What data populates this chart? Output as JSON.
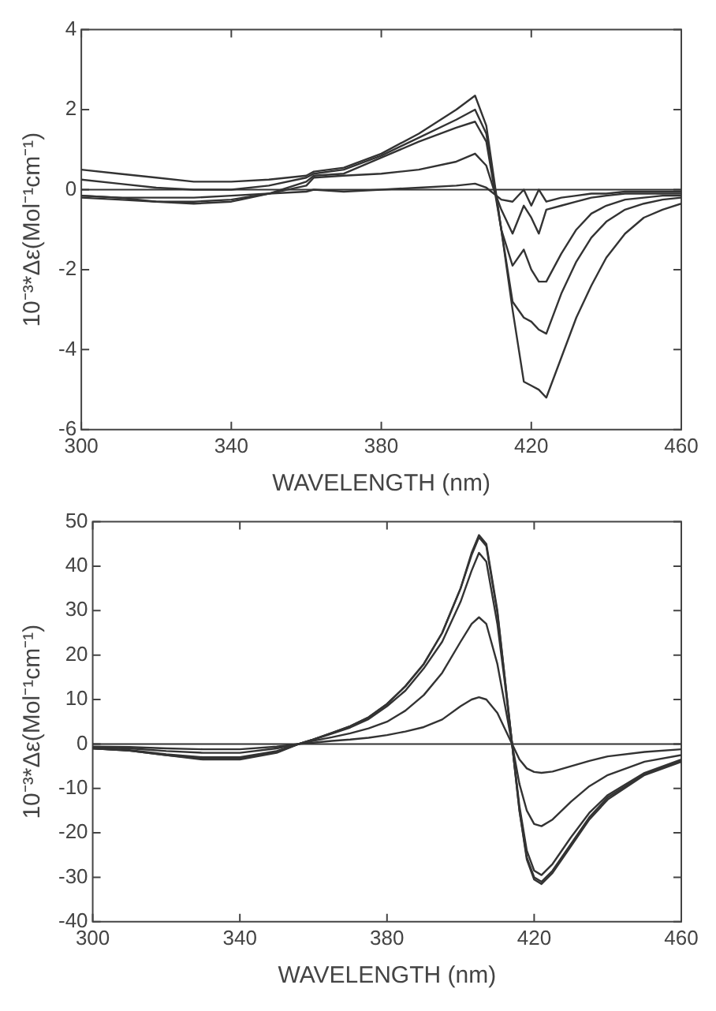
{
  "chart_data": [
    {
      "type": "line",
      "xlabel": "WAVELENGTH (nm)",
      "ylabel": "10⁻³*Δε(Mol⁻¹cm⁻¹)",
      "x": [
        300,
        310,
        320,
        330,
        340,
        350,
        360,
        362,
        370,
        380,
        390,
        400,
        405,
        408,
        410,
        412,
        415,
        418,
        420,
        422,
        424,
        428,
        432,
        436,
        440,
        445,
        450,
        455,
        460
      ],
      "xlim": [
        300,
        460
      ],
      "xticks": [
        300,
        340,
        380,
        420,
        460
      ],
      "ylim": [
        -6,
        4
      ],
      "yticks": [
        -6,
        -4,
        -2,
        0,
        2,
        4
      ],
      "grid": false,
      "legend": false,
      "marker": "none",
      "line_style": "solid",
      "ref_lines": [
        {
          "axis": "y",
          "value": 0,
          "color": "#333333"
        }
      ],
      "series": [
        {
          "color": "#333333",
          "values": [
            0.5,
            0.4,
            0.3,
            0.2,
            0.2,
            0.25,
            0.35,
            0.45,
            0.55,
            0.9,
            1.4,
            2.0,
            2.35,
            1.6,
            0.3,
            -1.0,
            -3.0,
            -4.8,
            -4.9,
            -5.0,
            -5.2,
            -4.2,
            -3.2,
            -2.4,
            -1.7,
            -1.1,
            -0.7,
            -0.5,
            -0.35
          ]
        },
        {
          "color": "#333333",
          "values": [
            0.25,
            0.15,
            0.05,
            0.0,
            0.0,
            0.1,
            0.3,
            0.4,
            0.5,
            0.85,
            1.3,
            1.75,
            2.0,
            1.4,
            0.2,
            -1.0,
            -2.8,
            -3.2,
            -3.3,
            -3.5,
            -3.6,
            -2.6,
            -1.8,
            -1.2,
            -0.8,
            -0.5,
            -0.35,
            -0.25,
            -0.2
          ]
        },
        {
          "color": "#333333",
          "values": [
            -0.15,
            -0.2,
            -0.3,
            -0.35,
            -0.3,
            -0.1,
            0.2,
            0.35,
            0.4,
            0.8,
            1.2,
            1.55,
            1.7,
            1.2,
            0.1,
            -1.0,
            -1.9,
            -1.5,
            -2.0,
            -2.3,
            -2.3,
            -1.6,
            -1.0,
            -0.6,
            -0.4,
            -0.25,
            -0.2,
            -0.15,
            -0.15
          ]
        },
        {
          "color": "#333333",
          "values": [
            -0.2,
            -0.25,
            -0.3,
            -0.3,
            -0.25,
            -0.1,
            0.1,
            0.3,
            0.35,
            0.4,
            0.5,
            0.7,
            0.9,
            0.6,
            0.0,
            -0.5,
            -1.1,
            -0.4,
            -0.7,
            -1.1,
            -0.5,
            -0.4,
            -0.3,
            -0.2,
            -0.15,
            -0.1,
            -0.1,
            -0.1,
            -0.1
          ]
        },
        {
          "color": "#333333",
          "values": [
            -0.15,
            -0.2,
            -0.2,
            -0.2,
            -0.15,
            -0.1,
            -0.05,
            0.0,
            -0.05,
            0.0,
            0.05,
            0.1,
            0.15,
            0.05,
            -0.1,
            -0.25,
            -0.3,
            0.0,
            -0.4,
            0.0,
            -0.3,
            -0.2,
            -0.15,
            -0.1,
            -0.1,
            -0.05,
            -0.05,
            -0.05,
            -0.05
          ]
        }
      ]
    },
    {
      "type": "line",
      "xlabel": "WAVELENGTH (nm)",
      "ylabel": "10⁻³*Δε(Mol⁻¹cm⁻¹)",
      "x": [
        300,
        310,
        320,
        330,
        340,
        350,
        356,
        360,
        365,
        370,
        375,
        380,
        385,
        390,
        395,
        400,
        403,
        405,
        407,
        410,
        412,
        414,
        416,
        418,
        420,
        422,
        425,
        430,
        435,
        440,
        450,
        460
      ],
      "xlim": [
        300,
        460
      ],
      "xticks": [
        300,
        340,
        380,
        420,
        460
      ],
      "ylim": [
        -40,
        50
      ],
      "yticks": [
        -40,
        -30,
        -20,
        -10,
        0,
        10,
        20,
        30,
        40,
        50
      ],
      "grid": false,
      "legend": false,
      "marker": "none",
      "line_style": "solid",
      "ref_lines": [
        {
          "axis": "y",
          "value": 0,
          "color": "#333333"
        }
      ],
      "series": [
        {
          "color": "#333333",
          "values": [
            -1,
            -1.5,
            -2.5,
            -3.5,
            -3.5,
            -2,
            0,
            1,
            2.5,
            4,
            6,
            9,
            13,
            18,
            25,
            35,
            43,
            47,
            45,
            30,
            15,
            0,
            -15,
            -26,
            -30.5,
            -31.5,
            -29,
            -23,
            -17,
            -12.5,
            -7,
            -4
          ]
        },
        {
          "color": "#333333",
          "values": [
            -1,
            -1.5,
            -2.5,
            -3.3,
            -3.3,
            -1.8,
            0,
            1,
            2.5,
            4,
            6,
            9,
            13,
            18,
            25,
            35,
            42.5,
            46.5,
            44.5,
            29.5,
            15,
            0,
            -15,
            -25.5,
            -30,
            -31,
            -28.5,
            -22.5,
            -16.5,
            -12,
            -6.8,
            -3.8
          ]
        },
        {
          "color": "#333333",
          "values": [
            -1,
            -1.4,
            -2.3,
            -3,
            -3,
            -1.6,
            0,
            1,
            2.3,
            3.7,
            5.6,
            8.5,
            12,
            17,
            23,
            32,
            39,
            43,
            41,
            27,
            14,
            0,
            -14,
            -24,
            -28.5,
            -29.5,
            -27,
            -21,
            -15.5,
            -11.5,
            -6.5,
            -3.5
          ]
        },
        {
          "color": "#333333",
          "values": [
            -0.8,
            -1,
            -1.6,
            -2,
            -2,
            -1,
            0,
            0.7,
            1.5,
            2.4,
            3.5,
            5,
            7.5,
            11,
            16,
            23,
            27,
            28.5,
            27,
            18,
            9,
            0,
            -9,
            -15,
            -18,
            -18.5,
            -17,
            -13,
            -9.5,
            -7,
            -4,
            -2.5
          ]
        },
        {
          "color": "#333333",
          "values": [
            -0.6,
            -0.7,
            -1,
            -1.2,
            -1.2,
            -0.6,
            0,
            0.3,
            0.7,
            1,
            1.4,
            2,
            2.8,
            3.8,
            5.5,
            8.5,
            10,
            10.5,
            10,
            7,
            3.5,
            0,
            -3.5,
            -5.5,
            -6.3,
            -6.5,
            -6.2,
            -5,
            -3.8,
            -2.8,
            -1.8,
            -1.2
          ]
        }
      ]
    }
  ]
}
